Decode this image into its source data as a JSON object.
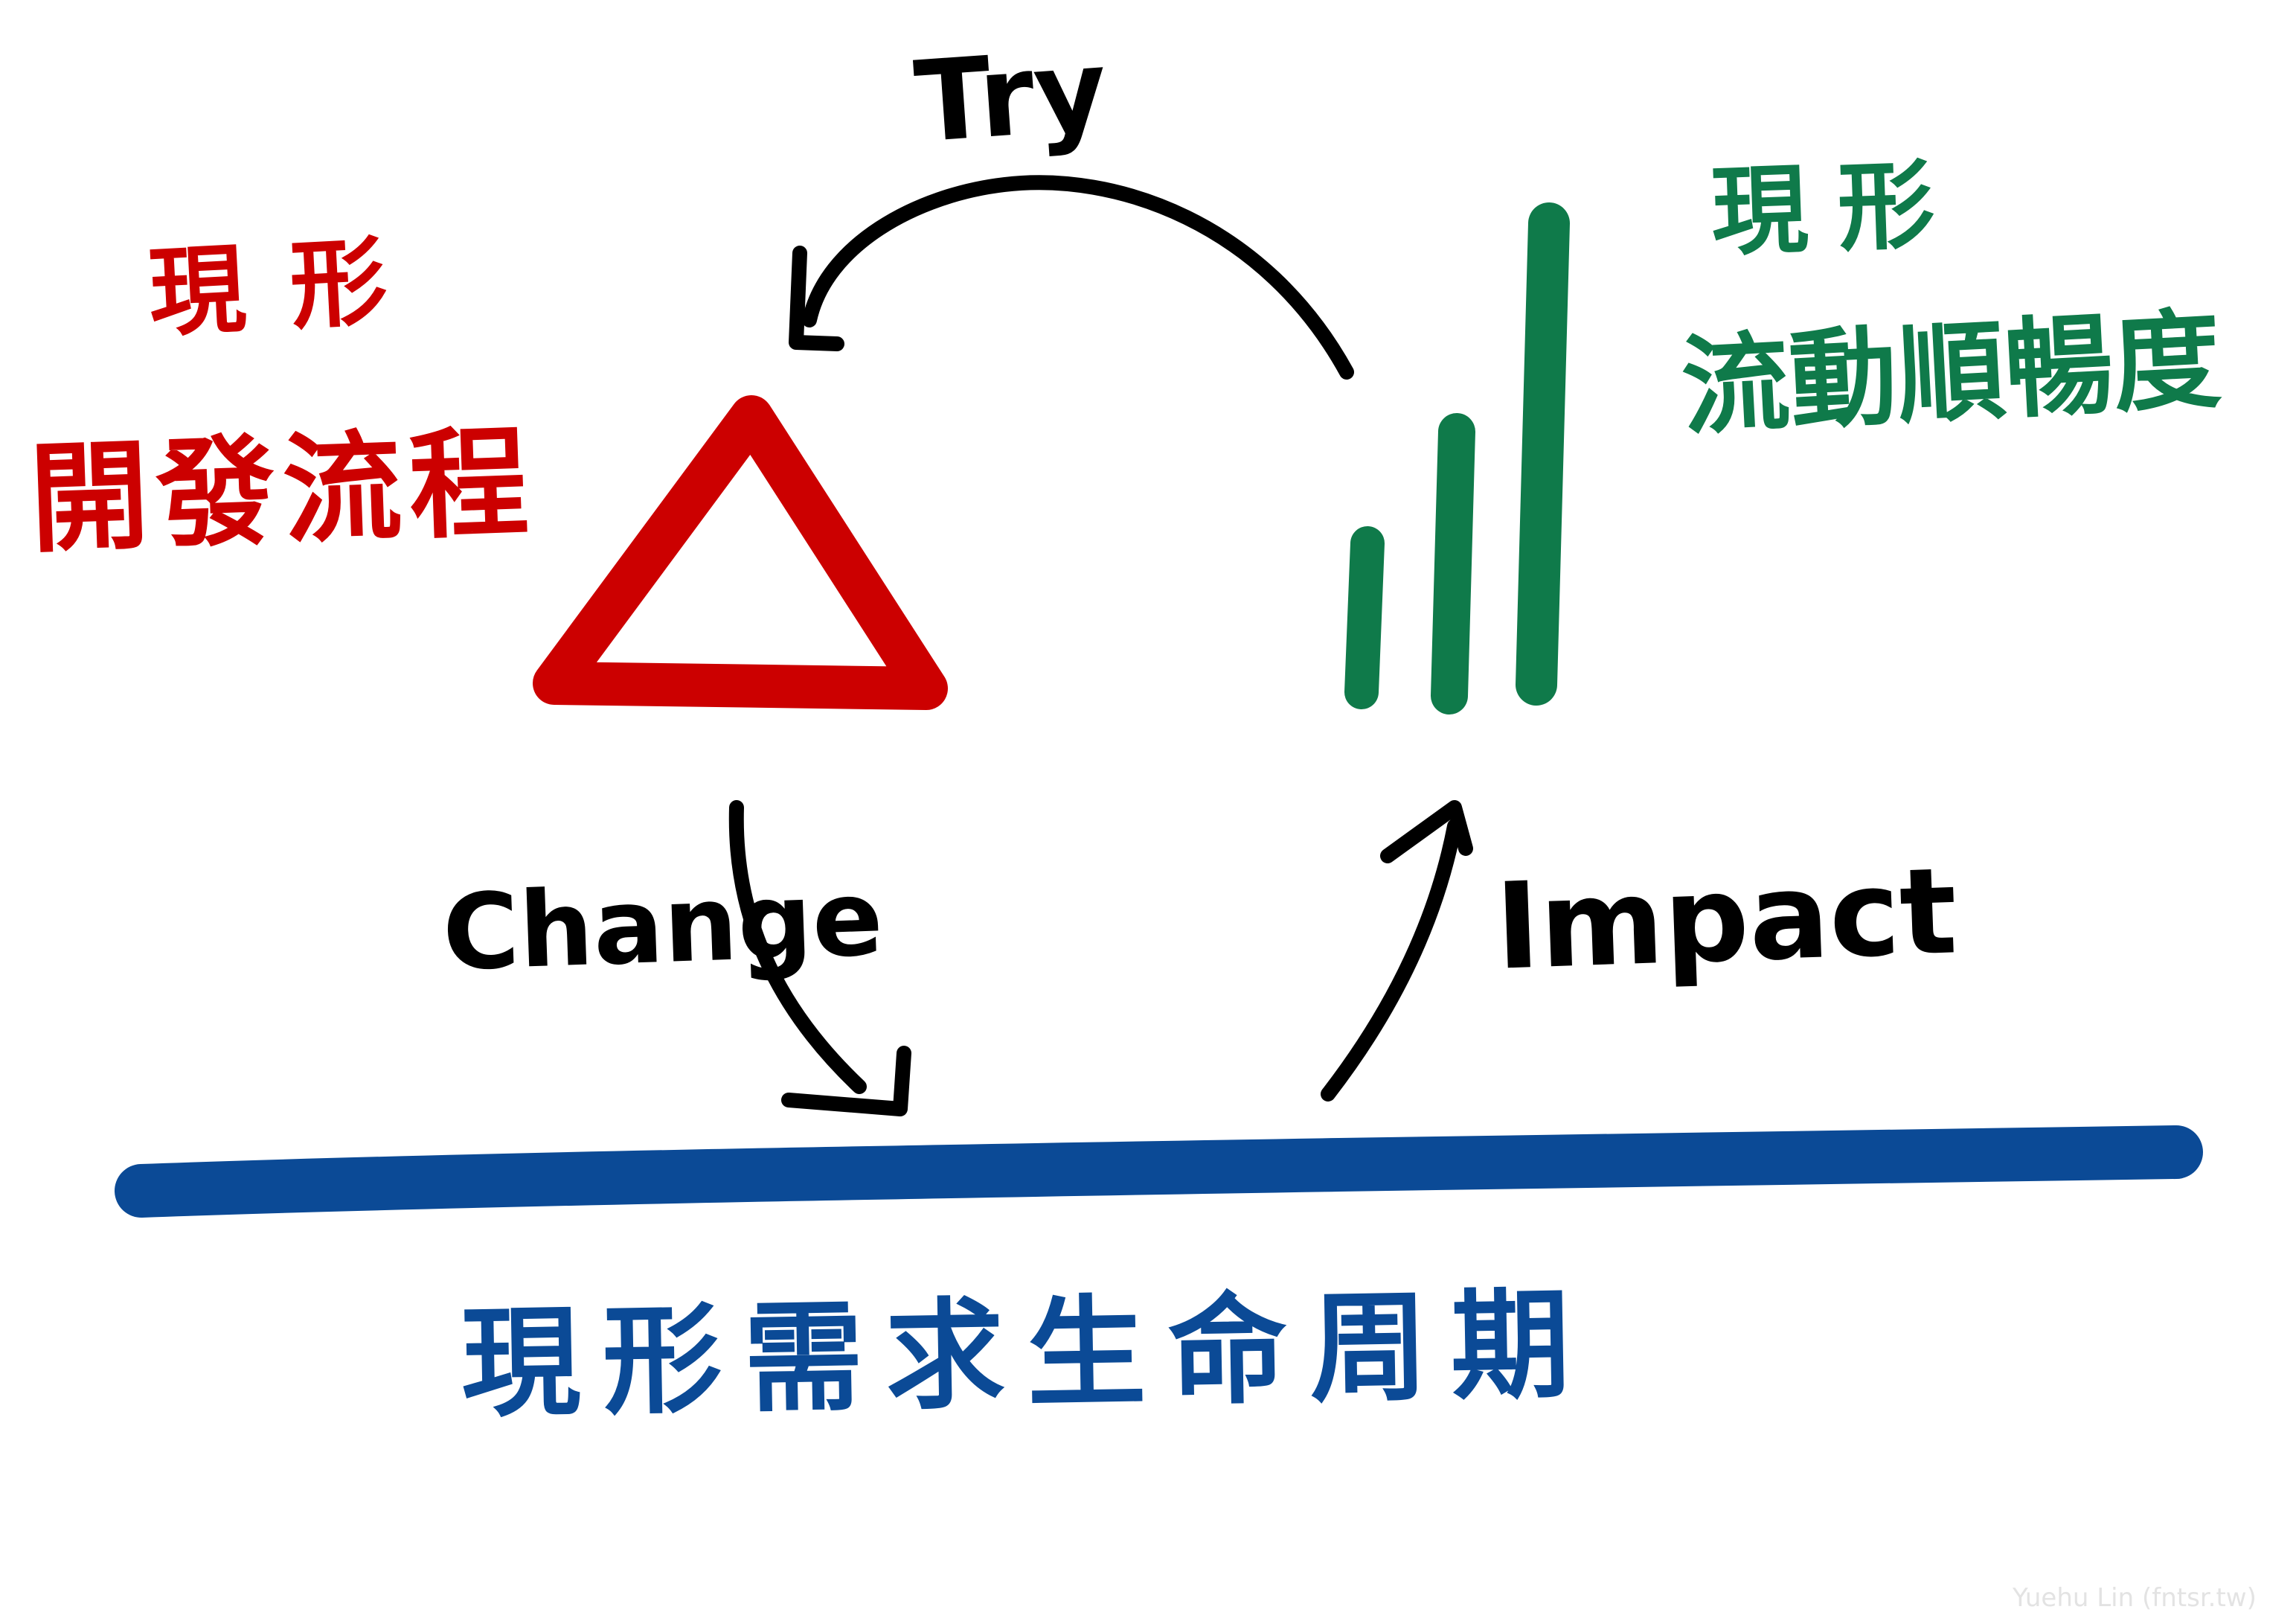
{
  "labels": {
    "red_line1": "現形",
    "red_line2": "開發流程",
    "green_line1": "現形",
    "green_line2": "流動順暢度",
    "blue": "現形需求生命周期",
    "try": "Try",
    "change": "Change",
    "impact": "Impact",
    "credit": "Yuehu Lin (fntsr.tw)"
  },
  "colors": {
    "red": "#cc0000",
    "green": "#0f7a4a",
    "blue": "#0b4a96",
    "ink": "#000000",
    "credit": "#e3e3e3"
  },
  "icons": [
    "triangle-icon",
    "signal-bars-icon"
  ]
}
